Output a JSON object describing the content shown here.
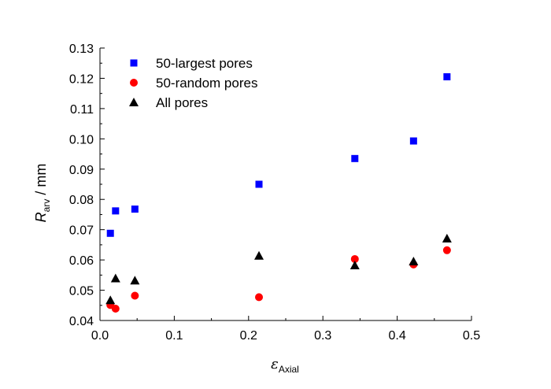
{
  "chart_data": {
    "type": "scatter",
    "xlabel_symbol": "ε",
    "xlabel_subscript": "Axial",
    "ylabel_symbol": "R",
    "ylabel_subscript": "arv",
    "ylabel_unit": " / mm",
    "xlim": [
      0,
      0.5
    ],
    "ylim": [
      0.04,
      0.13
    ],
    "xticks": [
      "0.0",
      "0.1",
      "0.2",
      "0.3",
      "0.4",
      "0.5"
    ],
    "yticks": [
      "0.04",
      "0.05",
      "0.06",
      "0.07",
      "0.08",
      "0.09",
      "0.10",
      "0.11",
      "0.12",
      "0.13"
    ],
    "grid": false,
    "legend_position": "top-left",
    "series": [
      {
        "name": "50-largest pores",
        "marker": "square",
        "color": "#0000ff",
        "points": [
          [
            0.014,
            0.0688
          ],
          [
            0.021,
            0.0762
          ],
          [
            0.047,
            0.0768
          ],
          [
            0.214,
            0.085
          ],
          [
            0.343,
            0.0935
          ],
          [
            0.422,
            0.0993
          ],
          [
            0.467,
            0.1205
          ]
        ]
      },
      {
        "name": "50-random pores",
        "marker": "circle",
        "color": "#ff0000",
        "points": [
          [
            0.014,
            0.0451
          ],
          [
            0.021,
            0.0439
          ],
          [
            0.047,
            0.0482
          ],
          [
            0.214,
            0.0477
          ],
          [
            0.343,
            0.0603
          ],
          [
            0.422,
            0.0585
          ],
          [
            0.467,
            0.0632
          ]
        ]
      },
      {
        "name": "All pores",
        "marker": "triangle",
        "color": "#000000",
        "points": [
          [
            0.014,
            0.0467
          ],
          [
            0.021,
            0.0539
          ],
          [
            0.047,
            0.0532
          ],
          [
            0.214,
            0.0614
          ],
          [
            0.343,
            0.0582
          ],
          [
            0.422,
            0.0595
          ],
          [
            0.467,
            0.0671
          ]
        ]
      }
    ]
  }
}
